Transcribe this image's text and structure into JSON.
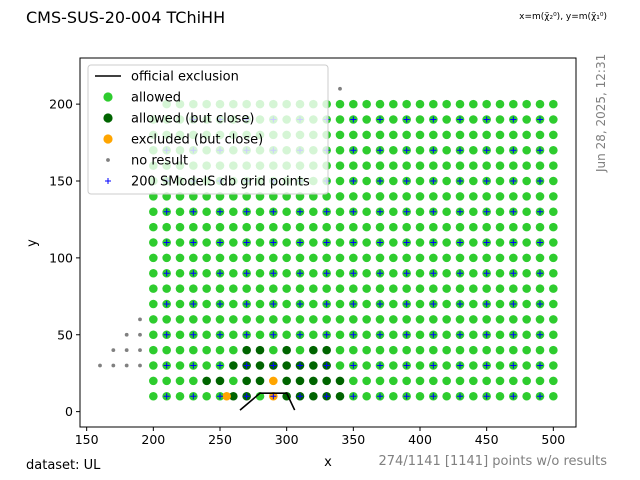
{
  "header": {
    "title": "CMS-SUS-20-004 TChiHH",
    "coordinate_note": "x=m(χ̃₂⁰), y=m(χ̃₁⁰)",
    "timestamp": "Jun 28, 2025, 12:31"
  },
  "footer": {
    "dataset": "dataset: UL",
    "no_result_note": "274/1141 [1141] points w/o results"
  },
  "colors": {
    "allowed": "#2ecc2e",
    "allowed_close": "#006400",
    "excluded_close": "#ffa500",
    "no_result": "#808080",
    "grid_points": "#0000ff",
    "official": "#000000"
  },
  "chart_data": {
    "type": "scatter",
    "xlabel": "x",
    "ylabel": "y",
    "xlim": [
      145,
      517
    ],
    "ylim": [
      -10,
      230
    ],
    "xticks": [
      "150",
      "200",
      "250",
      "300",
      "350",
      "400",
      "450",
      "500"
    ],
    "yticks": [
      "0",
      "50",
      "100",
      "150",
      "200"
    ],
    "grid": false,
    "legend_position": "top-left",
    "legend": [
      {
        "label": "official exclusion",
        "marker": "line",
        "color_key": "official"
      },
      {
        "label": "allowed",
        "marker": "dot",
        "color_key": "allowed"
      },
      {
        "label": "allowed (but close)",
        "marker": "dot",
        "color_key": "allowed_close"
      },
      {
        "label": "excluded (but close)",
        "marker": "dot",
        "color_key": "excluded_close"
      },
      {
        "label": "no result",
        "marker": "small-dot",
        "color_key": "no_result"
      },
      {
        "label": "200 SModelS db grid points",
        "marker": "plus",
        "color_key": "grid_points"
      }
    ],
    "official_exclusion": {
      "x": [
        265,
        280,
        290,
        300,
        306
      ],
      "y": [
        1,
        12,
        12,
        12,
        1
      ]
    },
    "allowed_region": {
      "x_min": 200,
      "x_max": 500,
      "x_step": 10,
      "y_min": 10,
      "y_max": 200,
      "y_step": 10,
      "min_x_minus_y": 10
    },
    "allowed_close_points": [
      [
        240,
        20
      ],
      [
        250,
        20
      ],
      [
        270,
        20
      ],
      [
        280,
        20
      ],
      [
        300,
        20
      ],
      [
        310,
        20
      ],
      [
        320,
        20
      ],
      [
        330,
        20
      ],
      [
        340,
        20
      ],
      [
        260,
        30
      ],
      [
        270,
        30
      ],
      [
        280,
        30
      ],
      [
        290,
        30
      ],
      [
        300,
        30
      ],
      [
        310,
        30
      ],
      [
        320,
        30
      ],
      [
        330,
        30
      ],
      [
        270,
        40
      ],
      [
        280,
        40
      ],
      [
        300,
        40
      ],
      [
        320,
        40
      ],
      [
        330,
        40
      ],
      [
        260,
        10
      ],
      [
        270,
        10
      ],
      [
        300,
        10
      ],
      [
        310,
        10
      ],
      [
        320,
        10
      ],
      [
        330,
        10
      ],
      [
        340,
        10
      ]
    ],
    "excluded_close_points": [
      [
        255,
        10
      ],
      [
        290,
        20
      ],
      [
        290,
        10
      ]
    ],
    "no_result_region": {
      "x_min": 160,
      "x_max": 340,
      "x_step": 10,
      "y_min": 30,
      "y_max": 220,
      "y_step": 10,
      "min_x_minus_y": 130
    },
    "grid_region": {
      "x_min": 210,
      "x_max": 500,
      "x_step": 20,
      "y_min": 10,
      "y_max": 200,
      "y_step": 20,
      "min_x_minus_y": 30
    }
  }
}
